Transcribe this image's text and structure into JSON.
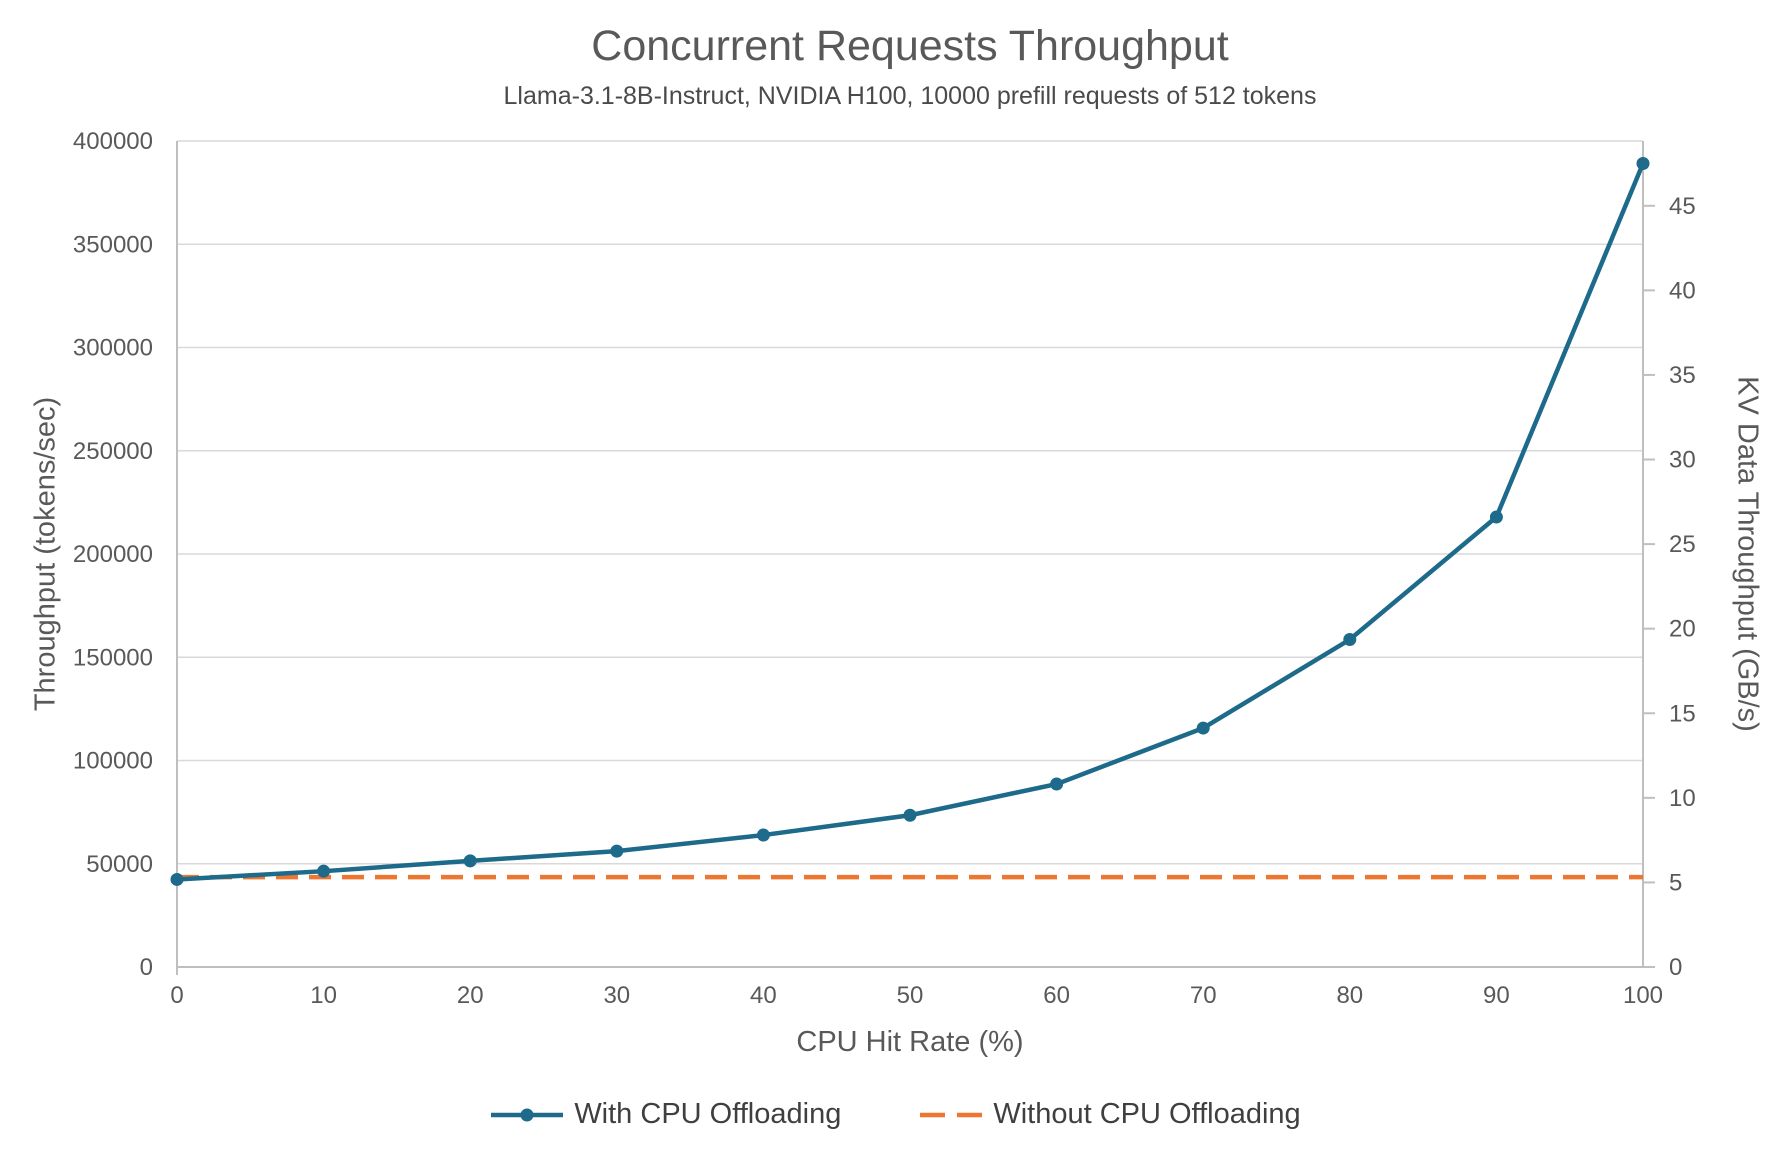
{
  "page": {
    "background": "#ffffff"
  },
  "chart_data": {
    "type": "line",
    "title": "Concurrent Requests Throughput",
    "subtitle": "Llama-3.1-8B-Instruct, NVIDIA H100, 10000 prefill requests of 512 tokens",
    "xlabel": "CPU Hit Rate (%)",
    "ylabel_left": "Throughput (tokens/sec)",
    "ylabel_right": "KV Data Throughput (GB/s)",
    "x": [
      0,
      10,
      20,
      30,
      40,
      50,
      60,
      70,
      80,
      90,
      100
    ],
    "x_ticks": [
      0,
      10,
      20,
      30,
      40,
      50,
      60,
      70,
      80,
      90,
      100
    ],
    "ylim_left": [
      0,
      400000
    ],
    "left_ticks": [
      0,
      50000,
      100000,
      150000,
      200000,
      250000,
      300000,
      350000,
      400000
    ],
    "ylim_right": [
      0,
      48.83
    ],
    "right_ticks": [
      0,
      5,
      10,
      15,
      20,
      25,
      30,
      35,
      40,
      45
    ],
    "grid": "horizontal",
    "legend_position": "bottom",
    "series": [
      {
        "name": "With CPU Offloading",
        "axis": "left",
        "color": "#1d6a8b",
        "line_style": "solid",
        "marker": "circle",
        "values": [
          42400,
          46400,
          51400,
          56100,
          63900,
          73500,
          88600,
          115700,
          158600,
          217900,
          389100
        ]
      },
      {
        "name": "Without CPU Offloading",
        "axis": "left",
        "color": "#ed7631",
        "line_style": "dashed",
        "marker": "none",
        "values": [
          43500,
          43500,
          43500,
          43500,
          43500,
          43500,
          43500,
          43500,
          43500,
          43500,
          43500
        ]
      }
    ],
    "colors": {
      "grid": "#d9d9d9",
      "axis": "#bfbfbf",
      "tick_text": "#595959",
      "title_text": "#595959",
      "legend_text": "#3f3f3f"
    }
  }
}
